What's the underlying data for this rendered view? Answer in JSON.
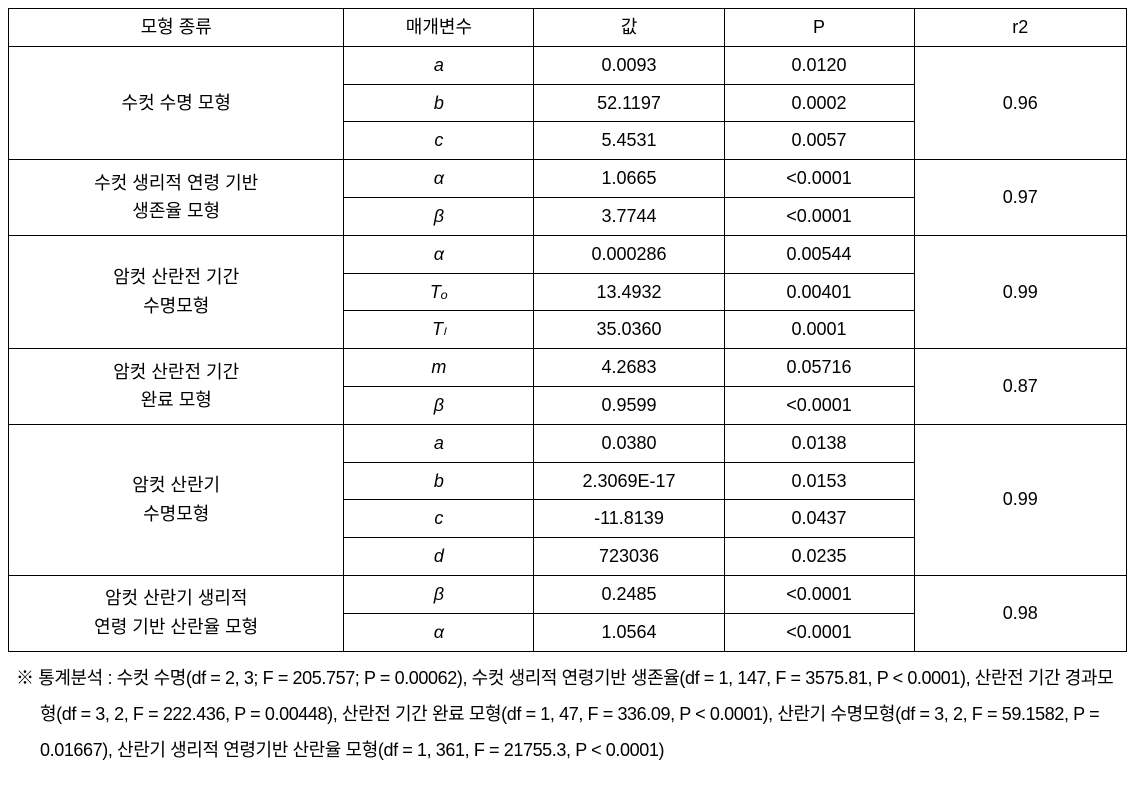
{
  "headers": {
    "model": "모형 종류",
    "param": "매개변수",
    "value": "값",
    "p": "P",
    "r2": "r2"
  },
  "rows": [
    {
      "model": "수컷 수명 모형",
      "model_rowspan": 3,
      "param": "a",
      "param_italic": true,
      "value": "0.0093",
      "p": "0.0120",
      "r2": "0.96",
      "r2_rowspan": 3
    },
    {
      "param": "b",
      "param_italic": true,
      "value": "52.1197",
      "p": "0.0002"
    },
    {
      "param": "c",
      "param_italic": true,
      "value": "5.4531",
      "p": "0.0057"
    },
    {
      "model": "수컷 생리적 연령 기반\n생존율 모형",
      "model_rowspan": 2,
      "param": "α",
      "param_italic": true,
      "value": "1.0665",
      "p": "<0.0001",
      "r2": "0.97",
      "r2_rowspan": 2
    },
    {
      "param": "β",
      "param_italic": true,
      "value": "3.7744",
      "p": "<0.0001"
    },
    {
      "model": "암컷 산란전 기간\n수명모형",
      "model_rowspan": 3,
      "param": "α",
      "param_italic": true,
      "value": "0.000286",
      "p": "0.00544",
      "r2": "0.99",
      "r2_rowspan": 3
    },
    {
      "param": "Tₒ",
      "param_italic": true,
      "value": "13.4932",
      "p": "0.00401"
    },
    {
      "param": "Tₗ",
      "param_italic": true,
      "value": "35.0360",
      "p": "0.0001"
    },
    {
      "model": "암컷 산란전 기간\n완료 모형",
      "model_rowspan": 2,
      "param": "m",
      "param_italic": true,
      "value": "4.2683",
      "p": "0.05716",
      "r2": "0.87",
      "r2_rowspan": 2
    },
    {
      "param": "β",
      "param_italic": true,
      "value": "0.9599",
      "p": "<0.0001"
    },
    {
      "model": "암컷 산란기\n수명모형",
      "model_rowspan": 4,
      "param": "a",
      "param_italic": true,
      "value": "0.0380",
      "p": "0.0138",
      "r2": "0.99",
      "r2_rowspan": 4
    },
    {
      "param": "b",
      "param_italic": true,
      "value": "2.3069E-17",
      "p": "0.0153"
    },
    {
      "param": "c",
      "param_italic": true,
      "value": "-11.8139",
      "p": "0.0437"
    },
    {
      "param": "d",
      "param_italic": true,
      "value": "723036",
      "p": "0.0235"
    },
    {
      "model": "암컷 산란기 생리적\n연령 기반 산란율 모형",
      "model_rowspan": 2,
      "param": "β",
      "param_italic": true,
      "value": "0.2485",
      "p": "<0.0001",
      "r2": "0.98",
      "r2_rowspan": 2
    },
    {
      "param": "α",
      "param_italic": true,
      "value": "1.0564",
      "p": "<0.0001"
    }
  ],
  "footnote": "※ 통계분석 : 수컷 수명(df = 2, 3; F = 205.757; P = 0.00062), 수컷 생리적 연령기반 생존율(df = 1, 147, F = 3575.81, P < 0.0001), 산란전 기간 경과모형(df = 3, 2, F = 222.436, P = 0.00448), 산란전 기간 완료 모형(df = 1, 47, F = 336.09, P < 0.0001), 산란기 수명모형(df = 3, 2, F = 59.1582, P = 0.01667), 산란기 생리적 연령기반 산란율 모형(df = 1, 361, F = 21755.3, P < 0.0001)"
}
